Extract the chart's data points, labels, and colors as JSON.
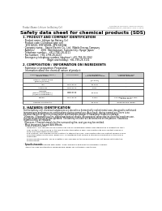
{
  "bg_color": "#ffffff",
  "header_left": "Product Name: Lithium Ion Battery Cell",
  "header_right": "Substance Number: SFH000-00010\nEstablishment / Revision: Dec.7.2010",
  "title": "Safety data sheet for chemical products (SDS)",
  "section1_title": "1. PRODUCT AND COMPANY IDENTIFICATION",
  "section1_lines": [
    "· Product name: Lithium Ion Battery Cell",
    "· Product code: Cylindrical-type cell",
    "   SFH 66500, SFH 66500L, SFH 66500A",
    "· Company name:   Sanyo Electric Co., Ltd.  Mobile Energy Company",
    "· Address:         2001  Kamitakanori, Sumoto-City, Hyogo, Japan",
    "· Telephone number:   +81-(799)-26-4111",
    "· Fax number:  +81-1799-26-4123",
    "· Emergency telephone number (daytime): +81-799-26-3562",
    "                                 (Night and holiday): +81-799-26-3131"
  ],
  "section2_title": "2. COMPOSITION / INFORMATION ON INGREDIENTS",
  "section2_lines": [
    "· Substance or preparation: Preparation",
    "· Information about the chemical nature of product:"
  ],
  "table_col_names": [
    "Common chemical name /\nBrand name",
    "CAS number",
    "Concentration /\nConcentration range",
    "Classification and\nhazard labeling"
  ],
  "table_rows": [
    [
      "Lithium cobalt oxide\n(LiMnO₂/LiCoO₂)",
      "-",
      "[30-60%]",
      "-"
    ],
    [
      "Iron",
      "7439-89-6",
      "15-25%",
      "-"
    ],
    [
      "Aluminum",
      "7429-90-5",
      "2-5%",
      "-"
    ],
    [
      "Graphite\n(Metal in graphite-1)\n(Al/Mn in graphite-2)",
      "7782-42-5\n7782-44-5",
      "10-35%",
      "-"
    ],
    [
      "Copper",
      "7440-50-8",
      "5-15%",
      "Sensitization of the skin\ngroup No.2"
    ],
    [
      "Organic electrolyte",
      "-",
      "10-20%",
      "Inflammable liquid"
    ]
  ],
  "section3_title": "3. HAZARDS IDENTIFICATION",
  "section3_lines": [
    "For the battery cell, chemical substances are stored in a hermetically sealed metal case, designed to withstand",
    "temperatures and pressures-combinations during normal use. As a result, during normal use, there is no",
    "physical danger of ignition or aspiration and therefore danger of hazardous materials leakage.",
    "  However, if exposed to a fire, added mechanical shocks, decomposed, when electro-chemical reactions use,",
    "the gas release valve will be operated. The battery cell case will be breached at fire potions, hazardous",
    "materials may be released.",
    "  Moreover, if heated strongly by the surrounding fire, soot gas may be emitted."
  ],
  "sub1_title": "· Most important hazard and effects:",
  "sub1_lines": [
    "  Human health effects:",
    "    Inhalation: The release of the electrolyte has an anesthesia action and stimulates a respiratory tract.",
    "    Skin contact: The release of the electrolyte stimulates a skin. The electrolyte skin contact causes a",
    "    sore and stimulation on the skin.",
    "    Eye contact: The release of the electrolyte stimulates eyes. The electrolyte eye contact causes a sore",
    "    and stimulation on the eye. Especially, a substance that causes a strong inflammation of the eye is",
    "    contained.",
    "    Environmental effects: Since a battery cell remains in the environment, do not throw out it into the",
    "    environment."
  ],
  "sub2_title": "· Specific hazards:",
  "sub2_lines": [
    "  If the electrolyte contacts with water, it will generate detrimental hydrogen fluoride.",
    "  Since the said electrolyte is inflammable liquid, do not bring close to fire."
  ]
}
